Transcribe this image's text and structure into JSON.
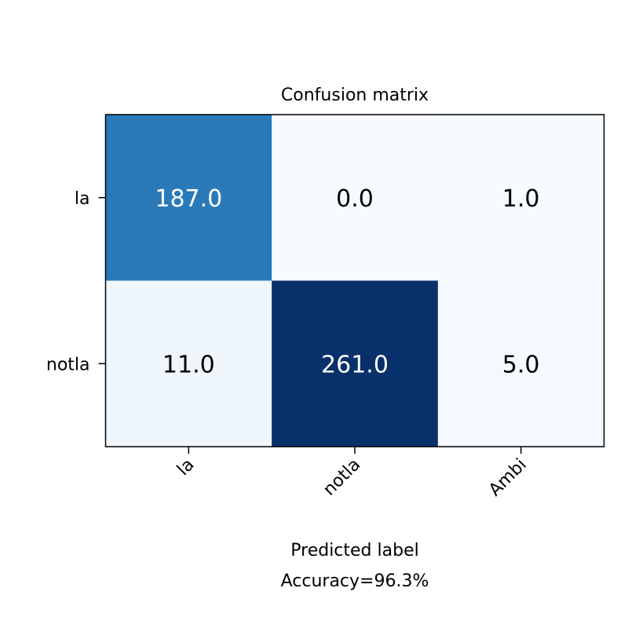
{
  "chart_data": {
    "type": "heatmap",
    "title": "Confusion matrix",
    "row_labels": [
      "la",
      "notla"
    ],
    "column_labels": [
      "la",
      "notla",
      "Ambi"
    ],
    "values": [
      [
        187.0,
        0.0,
        1.0
      ],
      [
        11.0,
        261.0,
        5.0
      ]
    ],
    "value_labels": [
      [
        "187.0",
        "0.0",
        "1.0"
      ],
      [
        "11.0",
        "261.0",
        "5.0"
      ]
    ],
    "xlabel": "Predicted label",
    "xlabel_line2": "Accuracy=96.3%",
    "ylabel": "",
    "colormap": "Blues",
    "vmin": 0,
    "vmax": 261.0,
    "colors": {
      "low": "#f7fbff",
      "high": "#08306b",
      "text_dark": "#000000",
      "text_light": "#ffffff"
    },
    "grid": false
  }
}
